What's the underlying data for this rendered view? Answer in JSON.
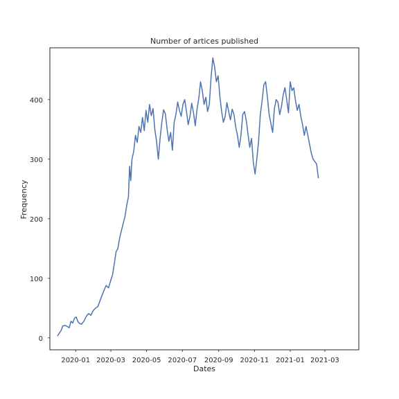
{
  "chart_data": {
    "type": "line",
    "title": "Number of artices published",
    "xlabel": "Dates",
    "ylabel": "Frequency",
    "x_ticks": [
      {
        "date": "2020-01-01",
        "label": "2020-01"
      },
      {
        "date": "2020-03-01",
        "label": "2020-03"
      },
      {
        "date": "2020-05-01",
        "label": "2020-05"
      },
      {
        "date": "2020-07-01",
        "label": "2020-07"
      },
      {
        "date": "2020-09-01",
        "label": "2020-09"
      },
      {
        "date": "2020-11-01",
        "label": "2020-11"
      },
      {
        "date": "2021-01-01",
        "label": "2021-01"
      },
      {
        "date": "2021-03-01",
        "label": "2021-03"
      }
    ],
    "y_ticks": [
      0,
      100,
      200,
      300,
      400
    ],
    "xlim": [
      "2019-11-18",
      "2021-04-28"
    ],
    "ylim": [
      -20,
      487
    ],
    "grid": false,
    "series": [
      {
        "color": "#4c72b0",
        "points": [
          [
            "2019-12-01",
            3
          ],
          [
            "2019-12-04",
            8
          ],
          [
            "2019-12-07",
            12
          ],
          [
            "2019-12-10",
            20
          ],
          [
            "2019-12-14",
            21
          ],
          [
            "2019-12-18",
            19
          ],
          [
            "2019-12-21",
            17
          ],
          [
            "2019-12-24",
            28
          ],
          [
            "2019-12-27",
            25
          ],
          [
            "2019-12-30",
            33
          ],
          [
            "2020-01-02",
            35
          ],
          [
            "2020-01-05",
            27
          ],
          [
            "2020-01-08",
            24
          ],
          [
            "2020-01-11",
            23
          ],
          [
            "2020-01-15",
            28
          ],
          [
            "2020-01-19",
            36
          ],
          [
            "2020-01-23",
            41
          ],
          [
            "2020-01-27",
            38
          ],
          [
            "2020-01-31",
            46
          ],
          [
            "2020-02-04",
            50
          ],
          [
            "2020-02-08",
            53
          ],
          [
            "2020-02-11",
            61
          ],
          [
            "2020-02-14",
            69
          ],
          [
            "2020-02-18",
            79
          ],
          [
            "2020-02-22",
            88
          ],
          [
            "2020-02-26",
            84
          ],
          [
            "2020-03-01",
            97
          ],
          [
            "2020-03-04",
            106
          ],
          [
            "2020-03-07",
            125
          ],
          [
            "2020-03-10",
            145
          ],
          [
            "2020-03-13",
            150
          ],
          [
            "2020-03-16",
            168
          ],
          [
            "2020-03-19",
            180
          ],
          [
            "2020-03-22",
            192
          ],
          [
            "2020-03-25",
            203
          ],
          [
            "2020-03-28",
            222
          ],
          [
            "2020-03-31",
            237
          ],
          [
            "2020-04-02",
            288
          ],
          [
            "2020-04-04",
            264
          ],
          [
            "2020-04-06",
            300
          ],
          [
            "2020-04-09",
            313
          ],
          [
            "2020-04-12",
            340
          ],
          [
            "2020-04-15",
            328
          ],
          [
            "2020-04-18",
            355
          ],
          [
            "2020-04-21",
            345
          ],
          [
            "2020-04-24",
            370
          ],
          [
            "2020-04-27",
            348
          ],
          [
            "2020-04-30",
            382
          ],
          [
            "2020-05-03",
            362
          ],
          [
            "2020-05-06",
            392
          ],
          [
            "2020-05-09",
            373
          ],
          [
            "2020-05-12",
            385
          ],
          [
            "2020-05-15",
            350
          ],
          [
            "2020-05-18",
            330
          ],
          [
            "2020-05-21",
            300
          ],
          [
            "2020-05-24",
            335
          ],
          [
            "2020-05-27",
            362
          ],
          [
            "2020-05-30",
            383
          ],
          [
            "2020-06-02",
            376
          ],
          [
            "2020-06-05",
            350
          ],
          [
            "2020-06-08",
            330
          ],
          [
            "2020-06-11",
            345
          ],
          [
            "2020-06-14",
            315
          ],
          [
            "2020-06-17",
            362
          ],
          [
            "2020-06-20",
            375
          ],
          [
            "2020-06-23",
            396
          ],
          [
            "2020-06-26",
            382
          ],
          [
            "2020-06-29",
            372
          ],
          [
            "2020-07-02",
            392
          ],
          [
            "2020-07-05",
            400
          ],
          [
            "2020-07-08",
            380
          ],
          [
            "2020-07-11",
            358
          ],
          [
            "2020-07-14",
            372
          ],
          [
            "2020-07-17",
            394
          ],
          [
            "2020-07-20",
            378
          ],
          [
            "2020-07-23",
            356
          ],
          [
            "2020-07-26",
            384
          ],
          [
            "2020-07-29",
            402
          ],
          [
            "2020-08-01",
            430
          ],
          [
            "2020-08-04",
            415
          ],
          [
            "2020-08-07",
            392
          ],
          [
            "2020-08-10",
            404
          ],
          [
            "2020-08-13",
            380
          ],
          [
            "2020-08-16",
            392
          ],
          [
            "2020-08-19",
            438
          ],
          [
            "2020-08-22",
            470
          ],
          [
            "2020-08-25",
            455
          ],
          [
            "2020-08-28",
            430
          ],
          [
            "2020-08-31",
            440
          ],
          [
            "2020-09-03",
            405
          ],
          [
            "2020-09-06",
            380
          ],
          [
            "2020-09-09",
            362
          ],
          [
            "2020-09-12",
            372
          ],
          [
            "2020-09-15",
            395
          ],
          [
            "2020-09-18",
            380
          ],
          [
            "2020-09-21",
            366
          ],
          [
            "2020-09-24",
            384
          ],
          [
            "2020-09-27",
            375
          ],
          [
            "2020-09-30",
            354
          ],
          [
            "2020-10-03",
            340
          ],
          [
            "2020-10-06",
            320
          ],
          [
            "2020-10-09",
            340
          ],
          [
            "2020-10-12",
            375
          ],
          [
            "2020-10-15",
            380
          ],
          [
            "2020-10-18",
            365
          ],
          [
            "2020-10-21",
            342
          ],
          [
            "2020-10-24",
            320
          ],
          [
            "2020-10-27",
            335
          ],
          [
            "2020-10-30",
            295
          ],
          [
            "2020-11-02",
            275
          ],
          [
            "2020-11-05",
            300
          ],
          [
            "2020-11-08",
            330
          ],
          [
            "2020-11-11",
            375
          ],
          [
            "2020-11-14",
            398
          ],
          [
            "2020-11-17",
            425
          ],
          [
            "2020-11-20",
            430
          ],
          [
            "2020-11-23",
            405
          ],
          [
            "2020-11-26",
            375
          ],
          [
            "2020-11-29",
            360
          ],
          [
            "2020-12-02",
            345
          ],
          [
            "2020-12-05",
            385
          ],
          [
            "2020-12-08",
            400
          ],
          [
            "2020-12-11",
            396
          ],
          [
            "2020-12-14",
            375
          ],
          [
            "2020-12-17",
            388
          ],
          [
            "2020-12-20",
            408
          ],
          [
            "2020-12-23",
            420
          ],
          [
            "2020-12-26",
            400
          ],
          [
            "2020-12-29",
            378
          ],
          [
            "2021-01-01",
            430
          ],
          [
            "2021-01-04",
            415
          ],
          [
            "2021-01-07",
            420
          ],
          [
            "2021-01-10",
            398
          ],
          [
            "2021-01-13",
            382
          ],
          [
            "2021-01-16",
            392
          ],
          [
            "2021-01-19",
            372
          ],
          [
            "2021-01-22",
            358
          ],
          [
            "2021-01-25",
            340
          ],
          [
            "2021-01-28",
            355
          ],
          [
            "2021-01-31",
            340
          ],
          [
            "2021-02-03",
            325
          ],
          [
            "2021-02-06",
            310
          ],
          [
            "2021-02-09",
            300
          ],
          [
            "2021-02-12",
            296
          ],
          [
            "2021-02-15",
            292
          ],
          [
            "2021-02-18",
            268
          ]
        ]
      }
    ]
  }
}
